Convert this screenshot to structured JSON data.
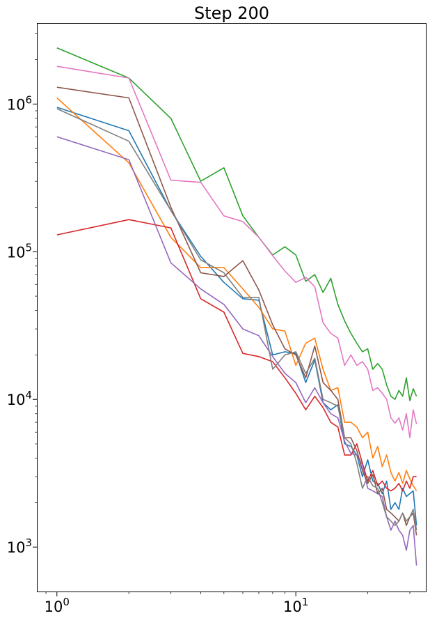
{
  "chart_data": {
    "type": "line",
    "title": "Step 200",
    "xlabel": "",
    "ylabel": "",
    "xscale": "log",
    "yscale": "log",
    "xlim": [
      0.83,
      35
    ],
    "ylim": [
      500,
      3500000
    ],
    "grid": false,
    "legend": "none",
    "x_ticks": [
      {
        "value": 1,
        "base": "10",
        "exp": "0"
      },
      {
        "value": 10,
        "base": "10",
        "exp": "1"
      }
    ],
    "y_ticks": [
      {
        "value": 1000,
        "base": "10",
        "exp": "3"
      },
      {
        "value": 10000,
        "base": "10",
        "exp": "4"
      },
      {
        "value": 100000,
        "base": "10",
        "exp": "5"
      },
      {
        "value": 1000000,
        "base": "10",
        "exp": "6"
      }
    ],
    "x": [
      1,
      2,
      3,
      4,
      5,
      6,
      7,
      8,
      9,
      10,
      11,
      12,
      13,
      14,
      15,
      16,
      17,
      18,
      19,
      20,
      21,
      22,
      23,
      24,
      25,
      26,
      27,
      28,
      29,
      30,
      31,
      32
    ],
    "series": [
      {
        "color": "#1f77b4",
        "values": [
          950000,
          660000,
          190000,
          93000,
          62000,
          48000,
          47000,
          20000,
          21000,
          20500,
          13000,
          18500,
          9500,
          8500,
          9200,
          5000,
          4800,
          4200,
          3000,
          3900,
          2800,
          2700,
          2300,
          2800,
          1800,
          2000,
          1800,
          2500,
          2200,
          2300,
          2400,
          1400
        ]
      },
      {
        "color": "#ff7f0e",
        "values": [
          1100000,
          400000,
          125000,
          78000,
          78000,
          56000,
          42000,
          30000,
          29000,
          17000,
          24000,
          26000,
          16000,
          11500,
          12000,
          7000,
          7000,
          6500,
          5500,
          6000,
          4000,
          4800,
          3500,
          4200,
          3200,
          2800,
          3200,
          2700,
          3300,
          2900,
          2600,
          2400
        ]
      },
      {
        "color": "#2ca02c",
        "values": [
          2400000,
          1500000,
          800000,
          300000,
          370000,
          175000,
          125000,
          95000,
          108000,
          95000,
          63000,
          70000,
          53000,
          66000,
          44000,
          34000,
          28000,
          24000,
          21000,
          22000,
          16000,
          17500,
          16000,
          12500,
          10500,
          10000,
          11500,
          10500,
          14000,
          9800,
          11800,
          10500
        ]
      },
      {
        "color": "#d62728",
        "values": [
          130000,
          165000,
          145000,
          48000,
          39000,
          20500,
          19500,
          18000,
          14000,
          11000,
          8500,
          10500,
          8800,
          7000,
          6500,
          4200,
          4200,
          5000,
          3700,
          2800,
          3300,
          2600,
          2800,
          2500,
          2400,
          2500,
          2700,
          2400,
          2800,
          2500,
          3000,
          3000
        ]
      },
      {
        "color": "#9467bd",
        "values": [
          600000,
          420000,
          84000,
          56000,
          44000,
          30000,
          27000,
          19500,
          15000,
          13000,
          9500,
          12000,
          9500,
          8000,
          7500,
          5200,
          4300,
          4200,
          3600,
          2500,
          2400,
          2300,
          2200,
          1600,
          1300,
          1500,
          1300,
          1200,
          950,
          1300,
          1400,
          750
        ]
      },
      {
        "color": "#8c564b",
        "values": [
          1300000,
          1100000,
          200000,
          72000,
          68000,
          87000,
          55000,
          32000,
          22000,
          20000,
          14000,
          23000,
          13000,
          11500,
          10000,
          5500,
          5500,
          4500,
          3300,
          2700,
          3100,
          2300,
          2500,
          1800,
          1700,
          1600,
          1500,
          1700,
          1400,
          1600,
          1700,
          1200
        ]
      },
      {
        "color": "#e377c2",
        "values": [
          1800000,
          1500000,
          305000,
          295000,
          175000,
          160000,
          125000,
          94000,
          74000,
          62000,
          67000,
          58000,
          33000,
          28000,
          26000,
          17000,
          20000,
          17000,
          18000,
          16000,
          11500,
          12000,
          11000,
          10000,
          7500,
          6900,
          7500,
          6200,
          8000,
          5500,
          8500,
          6800
        ]
      },
      {
        "color": "#7f7f7f",
        "values": [
          930000,
          560000,
          190000,
          88000,
          72000,
          49000,
          49000,
          16000,
          20000,
          21000,
          15000,
          19000,
          10000,
          9500,
          9000,
          5500,
          5000,
          3700,
          2500,
          3000,
          2600,
          2500,
          2000,
          1600,
          1500,
          1400,
          1500,
          1700,
          1500,
          1600,
          1800,
          1300
        ]
      }
    ]
  }
}
